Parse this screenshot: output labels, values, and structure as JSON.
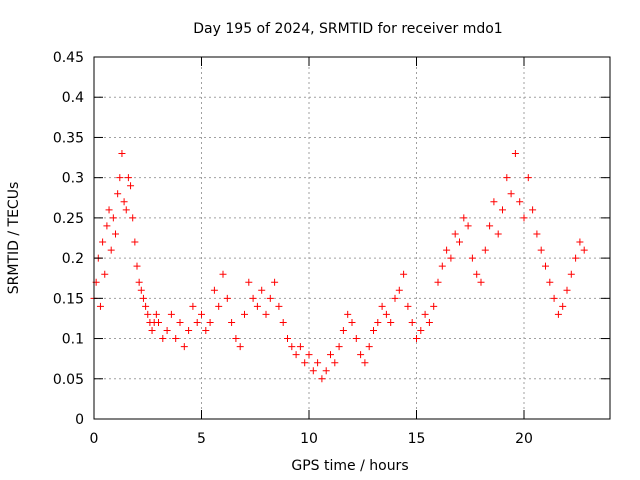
{
  "chart_data": {
    "type": "scatter",
    "title": "Day 195 of 2024, SRMTID for receiver mdo1",
    "xlabel": "GPS time / hours",
    "ylabel": "SRMTID / TECUs",
    "xlim": [
      0,
      24
    ],
    "ylim": [
      0,
      0.45
    ],
    "xticks": [
      0,
      5,
      10,
      15,
      20
    ],
    "xtick_labels": [
      "0",
      "5",
      "10",
      "15",
      "20"
    ],
    "yticks": [
      0,
      0.05,
      0.1,
      0.15,
      0.2,
      0.25,
      0.3,
      0.35,
      0.4,
      0.45
    ],
    "ytick_labels": [
      "0",
      "0.05",
      "0.1",
      "0.15",
      "0.2",
      "0.25",
      "0.3",
      "0.35",
      "0.4",
      "0.45"
    ],
    "grid": true,
    "marker": "+",
    "series_color": "#ff0000",
    "series": [
      {
        "name": "SRMTID",
        "x": [
          0.0,
          0.1,
          0.2,
          0.3,
          0.4,
          0.5,
          0.6,
          0.7,
          0.8,
          0.9,
          1.0,
          1.1,
          1.2,
          1.3,
          1.4,
          1.5,
          1.6,
          1.7,
          1.8,
          1.9,
          2.0,
          2.1,
          2.2,
          2.3,
          2.4,
          2.5,
          2.6,
          2.7,
          2.8,
          2.9,
          3.0,
          3.2,
          3.4,
          3.6,
          3.8,
          4.0,
          4.2,
          4.4,
          4.6,
          4.8,
          5.0,
          5.2,
          5.4,
          5.6,
          5.8,
          6.0,
          6.2,
          6.4,
          6.6,
          6.8,
          7.0,
          7.2,
          7.4,
          7.6,
          7.8,
          8.0,
          8.2,
          8.4,
          8.6,
          8.8,
          9.0,
          9.2,
          9.4,
          9.6,
          9.8,
          10.0,
          10.2,
          10.4,
          10.6,
          10.8,
          11.0,
          11.2,
          11.4,
          11.6,
          11.8,
          12.0,
          12.2,
          12.4,
          12.6,
          12.8,
          13.0,
          13.2,
          13.4,
          13.6,
          13.8,
          14.0,
          14.2,
          14.4,
          14.6,
          14.8,
          15.0,
          15.2,
          15.4,
          15.6,
          15.8,
          16.0,
          16.2,
          16.4,
          16.6,
          16.8,
          17.0,
          17.2,
          17.4,
          17.6,
          17.8,
          18.0,
          18.2,
          18.4,
          18.6,
          18.8,
          19.0,
          19.2,
          19.4,
          19.6,
          19.8,
          20.0,
          20.2,
          20.4,
          20.6,
          20.8,
          21.0,
          21.2,
          21.4,
          21.6,
          21.8,
          22.0,
          22.2,
          22.4,
          22.6,
          22.8
        ],
        "y": [
          0.15,
          0.17,
          0.2,
          0.14,
          0.22,
          0.18,
          0.24,
          0.26,
          0.21,
          0.25,
          0.23,
          0.28,
          0.3,
          0.33,
          0.27,
          0.26,
          0.3,
          0.29,
          0.25,
          0.22,
          0.19,
          0.17,
          0.16,
          0.15,
          0.14,
          0.13,
          0.12,
          0.11,
          0.12,
          0.13,
          0.12,
          0.1,
          0.11,
          0.13,
          0.1,
          0.12,
          0.09,
          0.11,
          0.14,
          0.12,
          0.13,
          0.11,
          0.12,
          0.16,
          0.14,
          0.18,
          0.15,
          0.12,
          0.1,
          0.09,
          0.13,
          0.17,
          0.15,
          0.14,
          0.16,
          0.13,
          0.15,
          0.17,
          0.14,
          0.12,
          0.1,
          0.09,
          0.08,
          0.09,
          0.07,
          0.08,
          0.06,
          0.07,
          0.05,
          0.06,
          0.08,
          0.07,
          0.09,
          0.11,
          0.13,
          0.12,
          0.1,
          0.08,
          0.07,
          0.09,
          0.11,
          0.12,
          0.14,
          0.13,
          0.12,
          0.15,
          0.16,
          0.18,
          0.14,
          0.12,
          0.1,
          0.11,
          0.13,
          0.12,
          0.14,
          0.17,
          0.19,
          0.21,
          0.2,
          0.23,
          0.22,
          0.25,
          0.24,
          0.2,
          0.18,
          0.17,
          0.21,
          0.24,
          0.27,
          0.23,
          0.26,
          0.3,
          0.28,
          0.33,
          0.27,
          0.25,
          0.3,
          0.26,
          0.23,
          0.21,
          0.19,
          0.17,
          0.15,
          0.13,
          0.14,
          0.16,
          0.18,
          0.2,
          0.22,
          0.21
        ]
      }
    ]
  }
}
